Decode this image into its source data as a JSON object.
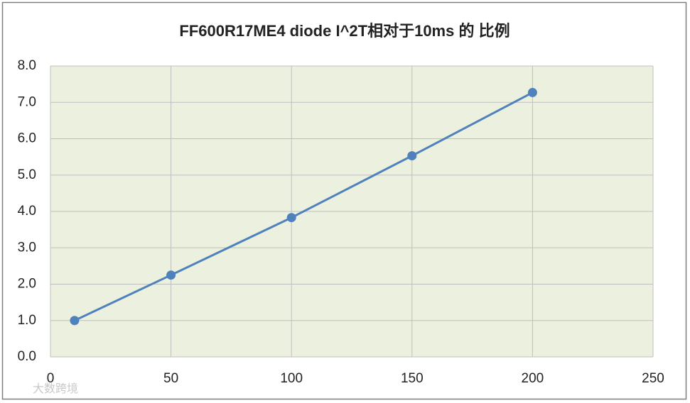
{
  "chart_data": {
    "type": "line",
    "title": "FF600R17ME4 diode I^2T相对于10ms 的 比例",
    "x": [
      10,
      50,
      100,
      150,
      200
    ],
    "values": [
      1.0,
      2.25,
      3.83,
      5.53,
      7.27
    ],
    "color": "#4f81bd",
    "xlim": [
      0,
      250
    ],
    "xticks": [
      0,
      50,
      100,
      150,
      200,
      250
    ],
    "ylim": [
      0,
      8
    ],
    "yticks": [
      {
        "value": 0,
        "label": "0.0"
      },
      {
        "value": 1,
        "label": "1.0"
      },
      {
        "value": 2,
        "label": "2.0"
      },
      {
        "value": 3,
        "label": "3.0"
      },
      {
        "value": 4,
        "label": "4.0"
      },
      {
        "value": 5,
        "label": "5.0"
      },
      {
        "value": 6,
        "label": "6.0"
      },
      {
        "value": 7,
        "label": "7.0"
      },
      {
        "value": 8,
        "label": "8.0"
      }
    ],
    "grid": true,
    "watermark": "大数跨境"
  }
}
